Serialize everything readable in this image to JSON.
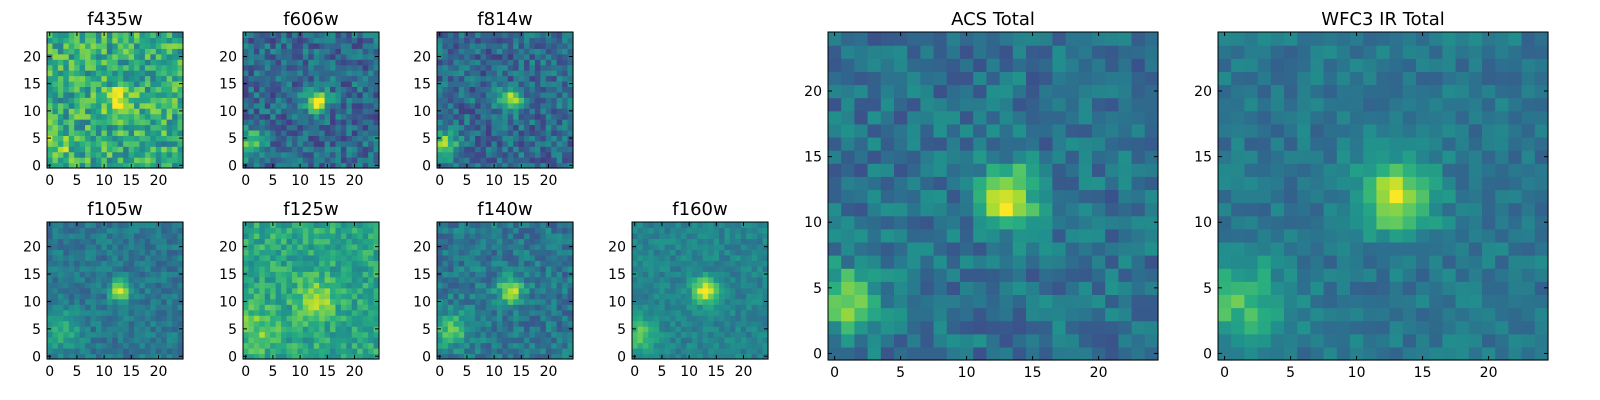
{
  "chart_data": [
    {
      "type": "heatmap",
      "title": "f435w",
      "colormap": "viridis",
      "grid_size": [
        25,
        25
      ],
      "xlim": [
        0,
        24
      ],
      "ylim": [
        0,
        24
      ],
      "xticks": [
        0,
        5,
        10,
        15,
        20
      ],
      "yticks": [
        0,
        5,
        10,
        15,
        20
      ],
      "source": {
        "x": 13,
        "y": 12,
        "amplitude": 0.35,
        "sigma": 1.8
      },
      "secondary_source": {
        "x": 1,
        "y": 3,
        "amplitude": 0.2,
        "sigma": 2.0
      },
      "background": 0.62,
      "noise": 0.22,
      "seed": 11
    },
    {
      "type": "heatmap",
      "title": "f606w",
      "colormap": "viridis",
      "grid_size": [
        25,
        25
      ],
      "xlim": [
        0,
        24
      ],
      "ylim": [
        0,
        24
      ],
      "xticks": [
        0,
        5,
        10,
        15,
        20
      ],
      "yticks": [
        0,
        5,
        10,
        15,
        20
      ],
      "source": {
        "x": 13,
        "y": 12,
        "amplitude": 0.6,
        "sigma": 1.5
      },
      "secondary_source": {
        "x": 1,
        "y": 4,
        "amplitude": 0.45,
        "sigma": 1.8
      },
      "background": 0.35,
      "noise": 0.17,
      "seed": 22
    },
    {
      "type": "heatmap",
      "title": "f814w",
      "colormap": "viridis",
      "grid_size": [
        25,
        25
      ],
      "xlim": [
        0,
        24
      ],
      "ylim": [
        0,
        24
      ],
      "xticks": [
        0,
        5,
        10,
        15,
        20
      ],
      "yticks": [
        0,
        5,
        10,
        15,
        20
      ],
      "source": {
        "x": 13,
        "y": 12,
        "amplitude": 0.6,
        "sigma": 1.4
      },
      "secondary_source": {
        "x": 1,
        "y": 4,
        "amplitude": 0.45,
        "sigma": 1.8
      },
      "background": 0.35,
      "noise": 0.17,
      "seed": 33
    },
    {
      "type": "heatmap",
      "title": "f105w",
      "colormap": "viridis",
      "grid_size": [
        25,
        25
      ],
      "xlim": [
        0,
        24
      ],
      "ylim": [
        0,
        24
      ],
      "xticks": [
        0,
        5,
        10,
        15,
        20
      ],
      "yticks": [
        0,
        5,
        10,
        15,
        20
      ],
      "source": {
        "x": 13,
        "y": 12,
        "amplitude": 0.55,
        "sigma": 1.3
      },
      "secondary_source": {
        "x": 2,
        "y": 5,
        "amplitude": 0.25,
        "sigma": 2.5
      },
      "background": 0.4,
      "noise": 0.1,
      "seed": 44
    },
    {
      "type": "heatmap",
      "title": "f125w",
      "colormap": "viridis",
      "grid_size": [
        25,
        25
      ],
      "xlim": [
        0,
        24
      ],
      "ylim": [
        0,
        24
      ],
      "xticks": [
        0,
        5,
        10,
        15,
        20
      ],
      "yticks": [
        0,
        5,
        10,
        15,
        20
      ],
      "source": {
        "x": 13,
        "y": 11,
        "amplitude": 0.3,
        "sigma": 2.2
      },
      "secondary_source": {
        "x": 2,
        "y": 5,
        "amplitude": 0.2,
        "sigma": 2.5
      },
      "background": 0.6,
      "noise": 0.14,
      "seed": 55
    },
    {
      "type": "heatmap",
      "title": "f140w",
      "colormap": "viridis",
      "grid_size": [
        25,
        25
      ],
      "xlim": [
        0,
        24
      ],
      "ylim": [
        0,
        24
      ],
      "xticks": [
        0,
        5,
        10,
        15,
        20
      ],
      "yticks": [
        0,
        5,
        10,
        15,
        20
      ],
      "source": {
        "x": 13,
        "y": 12,
        "amplitude": 0.5,
        "sigma": 1.6
      },
      "secondary_source": {
        "x": 2,
        "y": 5,
        "amplitude": 0.3,
        "sigma": 2.5
      },
      "background": 0.4,
      "noise": 0.13,
      "seed": 66
    },
    {
      "type": "heatmap",
      "title": "f160w",
      "colormap": "viridis",
      "grid_size": [
        25,
        25
      ],
      "xlim": [
        0,
        24
      ],
      "ylim": [
        0,
        24
      ],
      "xticks": [
        0,
        5,
        10,
        15,
        20
      ],
      "yticks": [
        0,
        5,
        10,
        15,
        20
      ],
      "source": {
        "x": 13,
        "y": 12,
        "amplitude": 0.55,
        "sigma": 1.6
      },
      "secondary_source": {
        "x": 1,
        "y": 4,
        "amplitude": 0.3,
        "sigma": 2.2
      },
      "background": 0.45,
      "noise": 0.08,
      "seed": 77
    },
    {
      "type": "heatmap",
      "title": "ACS Total",
      "colormap": "viridis",
      "grid_size": [
        25,
        25
      ],
      "xlim": [
        0,
        24
      ],
      "ylim": [
        0,
        24
      ],
      "xticks": [
        0,
        5,
        10,
        15,
        20
      ],
      "yticks": [
        0,
        5,
        10,
        15,
        20
      ],
      "source": {
        "x": 13,
        "y": 12,
        "amplitude": 0.6,
        "sigma": 1.6
      },
      "secondary_source": {
        "x": 1,
        "y": 4,
        "amplitude": 0.42,
        "sigma": 1.8
      },
      "background": 0.38,
      "noise": 0.13,
      "seed": 88
    },
    {
      "type": "heatmap",
      "title": "WFC3 IR Total",
      "colormap": "viridis",
      "grid_size": [
        25,
        25
      ],
      "xlim": [
        0,
        24
      ],
      "ylim": [
        0,
        24
      ],
      "xticks": [
        0,
        5,
        10,
        15,
        20
      ],
      "yticks": [
        0,
        5,
        10,
        15,
        20
      ],
      "source": {
        "x": 13,
        "y": 12,
        "amplitude": 0.55,
        "sigma": 1.9
      },
      "secondary_source": {
        "x": 1,
        "y": 4,
        "amplitude": 0.3,
        "sigma": 2.4
      },
      "background": 0.4,
      "noise": 0.09,
      "seed": 99
    }
  ]
}
